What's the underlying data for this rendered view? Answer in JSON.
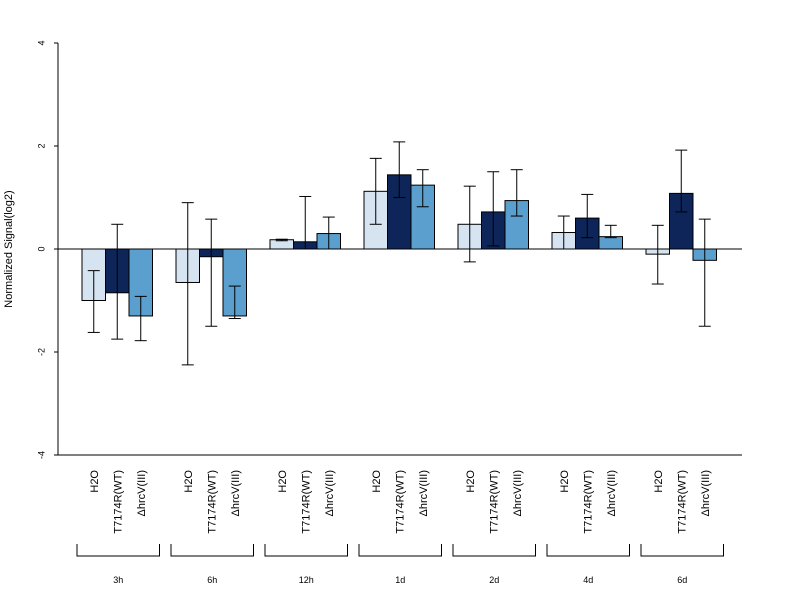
{
  "chart_data": {
    "type": "bar",
    "ylabel": "Normalized Signal(log2)",
    "ylim": [
      -4,
      4
    ],
    "yticks": [
      -4,
      -2,
      0,
      2,
      4
    ],
    "groups": [
      "3h",
      "6h",
      "12h",
      "1d",
      "2d",
      "4d",
      "6d"
    ],
    "series": [
      {
        "name": "H2O",
        "color": "#d6e4f2",
        "values": [
          -1.0,
          -0.65,
          0.18,
          1.12,
          0.48,
          0.32,
          -0.1
        ],
        "error_low": [
          -1.62,
          -2.25,
          0.16,
          0.48,
          -0.25,
          0.0,
          -0.68
        ],
        "error_high": [
          -0.42,
          0.9,
          0.19,
          1.76,
          1.22,
          0.64,
          0.46
        ]
      },
      {
        "name": "T7174R(WT)",
        "color": "#0d2559",
        "values": [
          -0.85,
          -0.15,
          0.14,
          1.44,
          0.72,
          0.6,
          1.08
        ],
        "error_low": [
          -1.75,
          -1.5,
          0.0,
          1.0,
          0.06,
          0.22,
          0.72
        ],
        "error_high": [
          0.48,
          0.58,
          1.02,
          2.08,
          1.5,
          1.06,
          1.92
        ]
      },
      {
        "name": "ΔhrcV(III)",
        "color": "#5b9fcf",
        "values": [
          -1.3,
          -1.3,
          0.3,
          1.24,
          0.94,
          0.24,
          -0.22
        ],
        "error_low": [
          -1.78,
          -1.35,
          0.0,
          0.82,
          0.64,
          0.22,
          -1.5
        ],
        "error_high": [
          -0.92,
          -0.72,
          0.62,
          1.54,
          1.54,
          0.46,
          0.58
        ]
      }
    ]
  }
}
